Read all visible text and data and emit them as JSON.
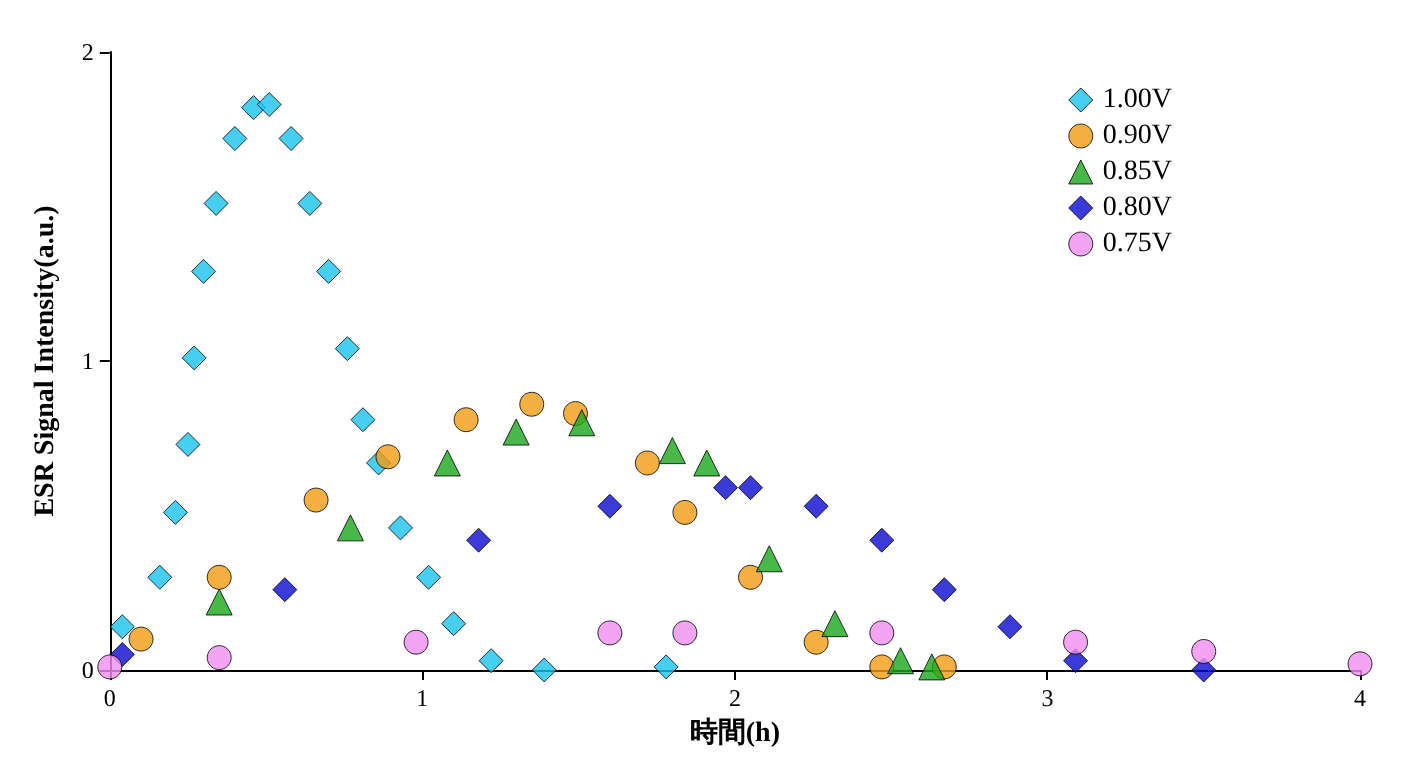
{
  "chart_data": {
    "type": "scatter",
    "xlabel": "時間(h)",
    "ylabel": "ESR Signal Intensity(a.u.)",
    "xlim": [
      0,
      4
    ],
    "xticks": [
      0,
      1,
      2,
      3,
      4
    ],
    "ylim": [
      0,
      2
    ],
    "yticks": [
      0,
      1,
      2
    ],
    "grid": false,
    "legend": "top right",
    "series": [
      {
        "name": "1.00V",
        "color": "#19c3f0",
        "marker": "diamond",
        "x": [
          0.04,
          0.16,
          0.21,
          0.25,
          0.27,
          0.3,
          0.34,
          0.4,
          0.46,
          0.51,
          0.58,
          0.64,
          0.7,
          0.76,
          0.81,
          0.86,
          0.93,
          1.02,
          1.1,
          1.22,
          1.39,
          1.78
        ],
        "values": [
          0.14,
          0.3,
          0.51,
          0.73,
          1.01,
          1.29,
          1.51,
          1.72,
          1.82,
          1.83,
          1.72,
          1.51,
          1.29,
          1.04,
          0.81,
          0.67,
          0.46,
          0.3,
          0.15,
          0.03,
          0,
          0.01
        ]
      },
      {
        "name": "0.90V",
        "color": "#f39c12",
        "marker": "circle",
        "x": [
          0.1,
          0.35,
          0.66,
          0.89,
          1.14,
          1.35,
          1.49,
          1.72,
          1.84,
          2.05,
          2.26,
          2.47,
          2.67
        ],
        "values": [
          0.1,
          0.3,
          0.55,
          0.69,
          0.81,
          0.86,
          0.83,
          0.67,
          0.51,
          0.3,
          0.09,
          0.01,
          0.01
        ]
      },
      {
        "name": "0.85V",
        "color": "#1aa81a",
        "marker": "triangle",
        "x": [
          0.35,
          0.77,
          1.08,
          1.3,
          1.51,
          1.8,
          1.91,
          2.11,
          2.32,
          2.53,
          2.63
        ],
        "values": [
          0.22,
          0.46,
          0.67,
          0.77,
          0.8,
          0.71,
          0.67,
          0.36,
          0.15,
          0.03,
          0.01
        ]
      },
      {
        "name": "0.80V",
        "color": "#0a0ad0",
        "marker": "diamond",
        "x": [
          0.04,
          0.56,
          1.18,
          1.6,
          1.97,
          2.05,
          2.26,
          2.47,
          2.67,
          2.88,
          3.09,
          3.5
        ],
        "values": [
          0.05,
          0.26,
          0.42,
          0.53,
          0.59,
          0.59,
          0.53,
          0.42,
          0.26,
          0.14,
          0.03,
          0
        ]
      },
      {
        "name": "0.75V",
        "color": "#f08ef0",
        "marker": "circle",
        "x": [
          0,
          0.35,
          0.98,
          1.6,
          1.84,
          2.47,
          3.09,
          3.5,
          4
        ],
        "values": [
          0.01,
          0.04,
          0.09,
          0.12,
          0.12,
          0.12,
          0.09,
          0.06,
          0.02
        ]
      }
    ]
  }
}
